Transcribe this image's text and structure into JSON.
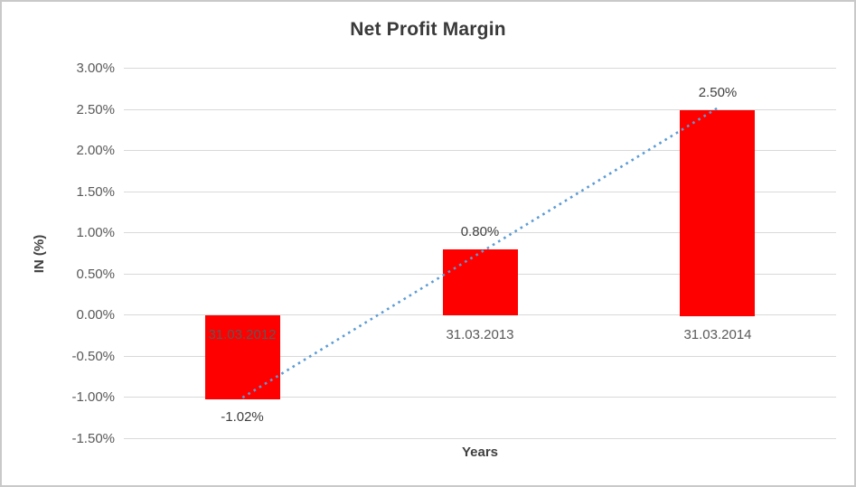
{
  "chart_data": {
    "type": "bar",
    "title": "Net Profit Margin",
    "xlabel": "Years",
    "ylabel": "IN (%)",
    "categories": [
      "31.03.2012",
      "31.03.2013",
      "31.03.2014"
    ],
    "values": [
      -1.02,
      0.8,
      2.5
    ],
    "data_labels": [
      "-1.02%",
      "0.80%",
      "2.50%"
    ],
    "ylim": [
      -1.5,
      3.0
    ],
    "ytick_step": 0.5,
    "ytick_labels": [
      "3.00%",
      "2.50%",
      "2.00%",
      "1.50%",
      "1.00%",
      "0.50%",
      "0.00%",
      "-0.50%",
      "-1.00%",
      "-1.50%"
    ],
    "grid": true,
    "legend": "none",
    "bar_color": "#FF0000",
    "grid_color": "#D9D9D9",
    "trendline": {
      "type": "linear",
      "style": "dotted",
      "color": "#5B9BD5",
      "start_value": -1.0,
      "end_value": 2.52
    }
  }
}
